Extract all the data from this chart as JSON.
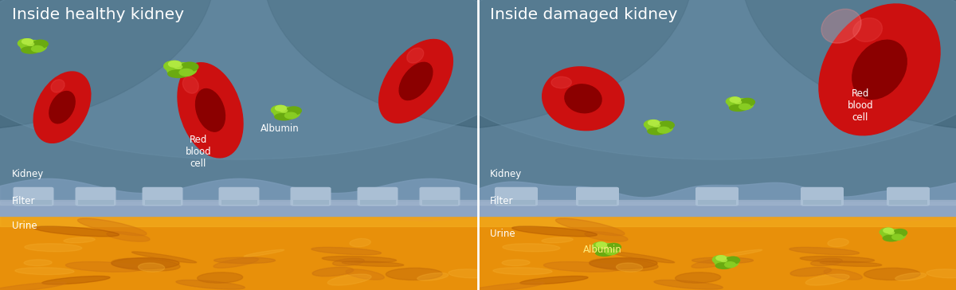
{
  "title_left": "Inside healthy kidney",
  "title_right": "Inside damaged kidney",
  "label_kidney": "Kidney",
  "label_filter": "Filter",
  "label_urine": "Urine",
  "label_albumin": "Albumin",
  "label_rbc": "Red\nblood\ncell",
  "kidney_bg": "#5b7f96",
  "kidney_dark": "#3a5e72",
  "filter_color": "#8ea5c3",
  "filter_top_color": "#a0b4cc",
  "tooth_color": "#aabfd4",
  "urine_base": "#e8900a",
  "urine_mid": "#d47008",
  "urine_light": "#f5b020",
  "urine_dark": "#b85a00",
  "rbc_outer": "#cc1010",
  "rbc_inner": "#8b0000",
  "rbc_shine": "#e84040",
  "alb_dark": "#6aaa10",
  "alb_mid": "#88cc22",
  "alb_light": "#b0e840",
  "text_color": "#ffffff",
  "albumin_label_color": "#ffee80",
  "fig_width": 12.0,
  "fig_height": 3.64,
  "dpi": 100
}
